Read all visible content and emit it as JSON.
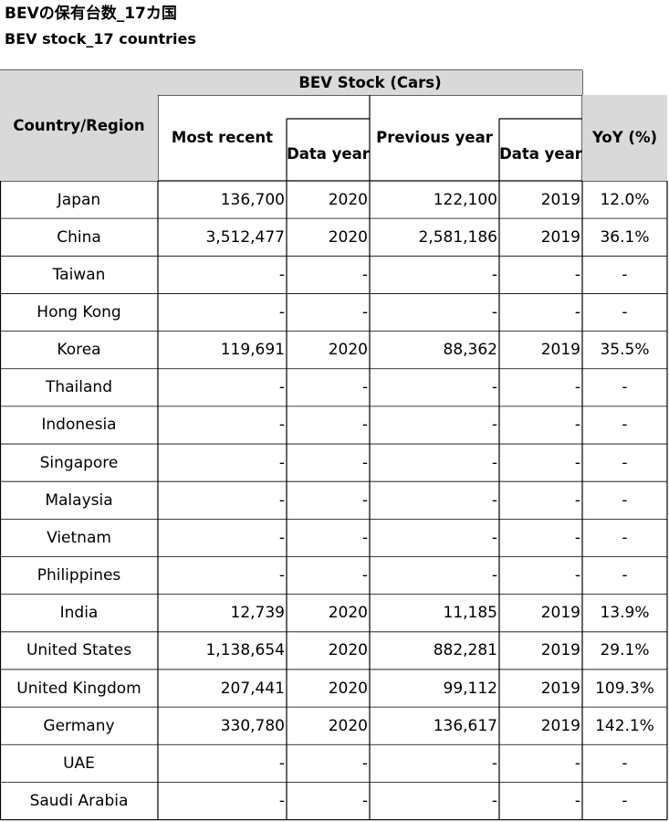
{
  "title": {
    "jp": "BEVの保有台数_17カ国",
    "en": "BEV stock_17 countries"
  },
  "headers": {
    "country": "Country/Region",
    "group": "BEV Stock (Cars)",
    "most_recent": "Most recent",
    "data_year": "Data year",
    "previous_year": "Previous year",
    "data_year_prev": "Data year",
    "yoy": "YoY (%)"
  },
  "rows": [
    {
      "country": "Japan",
      "most_recent": "136,700",
      "year": "2020",
      "previous": "122,100",
      "prev_year": "2019",
      "yoy": "12.0%"
    },
    {
      "country": "China",
      "most_recent": "3,512,477",
      "year": "2020",
      "previous": "2,581,186",
      "prev_year": "2019",
      "yoy": "36.1%"
    },
    {
      "country": "Taiwan",
      "most_recent": "-",
      "year": "-",
      "previous": "-",
      "prev_year": "-",
      "yoy": "-"
    },
    {
      "country": "Hong Kong",
      "most_recent": "-",
      "year": "-",
      "previous": "-",
      "prev_year": "-",
      "yoy": "-"
    },
    {
      "country": "Korea",
      "most_recent": "119,691",
      "year": "2020",
      "previous": "88,362",
      "prev_year": "2019",
      "yoy": "35.5%"
    },
    {
      "country": "Thailand",
      "most_recent": "-",
      "year": "-",
      "previous": "-",
      "prev_year": "-",
      "yoy": "-"
    },
    {
      "country": "Indonesia",
      "most_recent": "-",
      "year": "-",
      "previous": "-",
      "prev_year": "-",
      "yoy": "-"
    },
    {
      "country": "Singapore",
      "most_recent": "-",
      "year": "-",
      "previous": "-",
      "prev_year": "-",
      "yoy": "-"
    },
    {
      "country": "Malaysia",
      "most_recent": "-",
      "year": "-",
      "previous": "-",
      "prev_year": "-",
      "yoy": "-"
    },
    {
      "country": "Vietnam",
      "most_recent": "-",
      "year": "-",
      "previous": "-",
      "prev_year": "-",
      "yoy": "-"
    },
    {
      "country": "Philippines",
      "most_recent": "-",
      "year": "-",
      "previous": "-",
      "prev_year": "-",
      "yoy": "-"
    },
    {
      "country": "India",
      "most_recent": "12,739",
      "year": "2020",
      "previous": "11,185",
      "prev_year": "2019",
      "yoy": "13.9%"
    },
    {
      "country": "United States",
      "most_recent": "1,138,654",
      "year": "2020",
      "previous": "882,281",
      "prev_year": "2019",
      "yoy": "29.1%"
    },
    {
      "country": "United Kingdom",
      "most_recent": "207,441",
      "year": "2020",
      "previous": "99,112",
      "prev_year": "2019",
      "yoy": "109.3%"
    },
    {
      "country": "Germany",
      "most_recent": "330,780",
      "year": "2020",
      "previous": "136,617",
      "prev_year": "2019",
      "yoy": "142.1%"
    },
    {
      "country": "UAE",
      "most_recent": "-",
      "year": "-",
      "previous": "-",
      "prev_year": "-",
      "yoy": "-"
    },
    {
      "country": "Saudi Arabia",
      "most_recent": "-",
      "year": "-",
      "previous": "-",
      "prev_year": "-",
      "yoy": "-"
    }
  ],
  "colors": {
    "header_bg": "#d9d9d9",
    "line_light": "#c8c8c8",
    "line_dark": "#000000"
  }
}
